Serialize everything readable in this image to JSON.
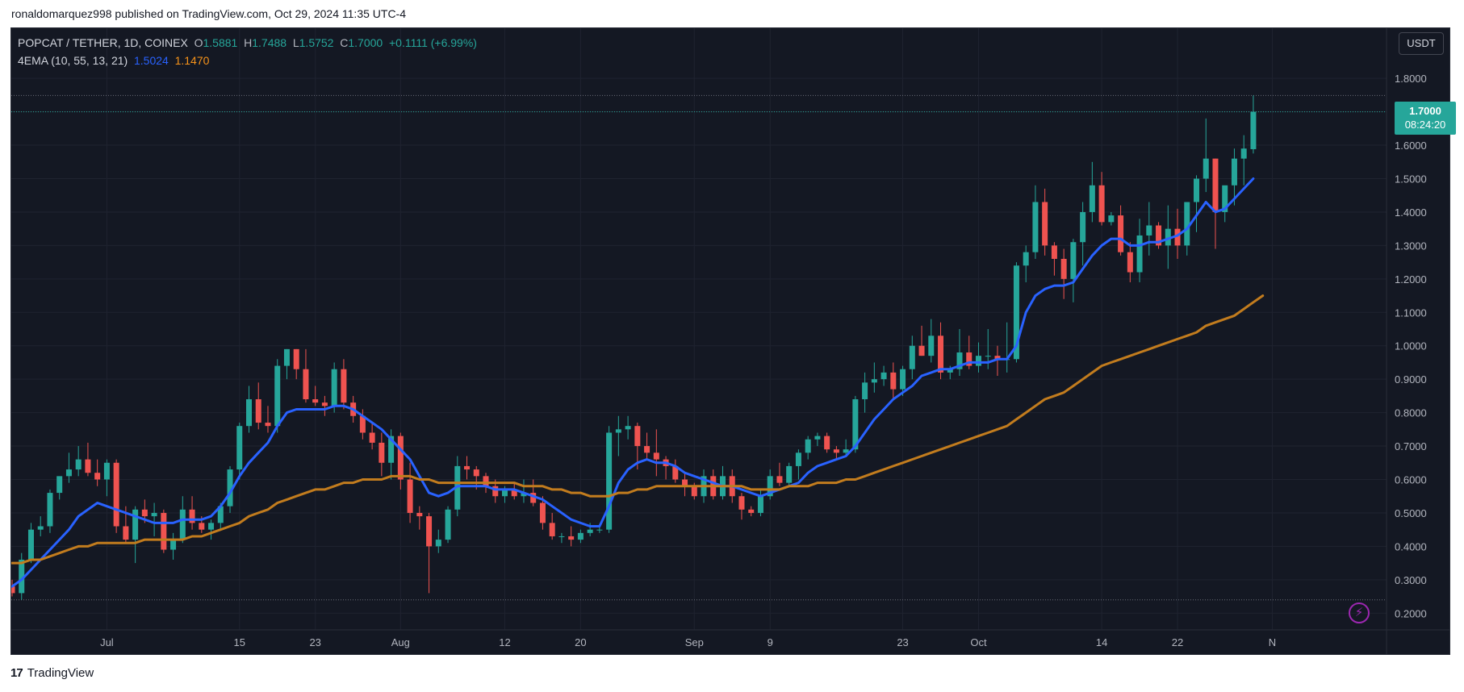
{
  "caption": "ronaldomarquez998 published on TradingView.com, Oct 29, 2024 11:35 UTC-4",
  "footer": {
    "logo_mark": "17",
    "brand": "TradingView"
  },
  "legend": {
    "symbol": "POPCAT / TETHER, 1D, COINEX",
    "o_label": "O",
    "o": "1.5881",
    "h_label": "H",
    "h": "1.7488",
    "l_label": "L",
    "l": "1.5752",
    "c_label": "C",
    "c": "1.7000",
    "change": "+0.1111 (+6.99%)",
    "indicator": "4EMA (10, 55, 13, 21)",
    "ema_fast": "1.5024",
    "ema_slow": "1.1470"
  },
  "currency": "USDT",
  "last_price": "1.7000",
  "countdown": "08:24:20",
  "icons": {
    "alert": "lightning-bolt-icon"
  },
  "colors": {
    "background": "#141823",
    "up": "#26a69a",
    "down": "#ef5350",
    "ema_fast": "#2962ff",
    "ema_slow": "#c27c1e",
    "grid": "#1f2330",
    "axis_text": "#b2b5be"
  },
  "chart_data": {
    "type": "candlestick",
    "title": "POPCAT / TETHER, 1D, COINEX",
    "xlabel": "",
    "ylabel": "",
    "ylim": [
      0.15,
      1.95
    ],
    "y_ticks": [
      0.2,
      0.3,
      0.4,
      0.5,
      0.6,
      0.7,
      0.8,
      0.9,
      1.0,
      1.1,
      1.2,
      1.3,
      1.4,
      1.5,
      1.6,
      1.7,
      1.8
    ],
    "y_tick_labels": [
      "0.2000",
      "0.3000",
      "0.4000",
      "0.5000",
      "0.6000",
      "0.7000",
      "0.8000",
      "0.9000",
      "1.0000",
      "1.1000",
      "1.2000",
      "1.3000",
      "1.4000",
      "1.5000",
      "1.6000",
      "1.7000",
      "1.8000"
    ],
    "x_start": "2024-06-21",
    "x_ticks": [
      {
        "date": "2024-07-01",
        "label": "Jul"
      },
      {
        "date": "2024-07-15",
        "label": "15"
      },
      {
        "date": "2024-07-23",
        "label": "23"
      },
      {
        "date": "2024-08-01",
        "label": "Aug"
      },
      {
        "date": "2024-08-12",
        "label": "12"
      },
      {
        "date": "2024-08-20",
        "label": "20"
      },
      {
        "date": "2024-09-01",
        "label": "Sep"
      },
      {
        "date": "2024-09-09",
        "label": "9"
      },
      {
        "date": "2024-09-23",
        "label": "23"
      },
      {
        "date": "2024-10-01",
        "label": "Oct"
      },
      {
        "date": "2024-10-14",
        "label": "14"
      },
      {
        "date": "2024-10-22",
        "label": "22"
      },
      {
        "date": "2024-11-01",
        "label": "N"
      }
    ],
    "reference_lines": [
      1.7488,
      0.24
    ],
    "candles": [
      [
        0.28,
        0.3,
        0.25,
        0.26
      ],
      [
        0.26,
        0.38,
        0.24,
        0.36
      ],
      [
        0.36,
        0.47,
        0.35,
        0.45
      ],
      [
        0.45,
        0.49,
        0.43,
        0.46
      ],
      [
        0.46,
        0.57,
        0.44,
        0.56
      ],
      [
        0.56,
        0.6,
        0.54,
        0.61
      ],
      [
        0.61,
        0.68,
        0.59,
        0.63
      ],
      [
        0.63,
        0.7,
        0.61,
        0.66
      ],
      [
        0.66,
        0.71,
        0.61,
        0.62
      ],
      [
        0.62,
        0.66,
        0.58,
        0.6
      ],
      [
        0.6,
        0.66,
        0.55,
        0.65
      ],
      [
        0.65,
        0.66,
        0.44,
        0.46
      ],
      [
        0.46,
        0.52,
        0.41,
        0.42
      ],
      [
        0.42,
        0.52,
        0.35,
        0.51
      ],
      [
        0.51,
        0.54,
        0.47,
        0.49
      ],
      [
        0.49,
        0.53,
        0.43,
        0.5
      ],
      [
        0.5,
        0.51,
        0.38,
        0.39
      ],
      [
        0.39,
        0.44,
        0.36,
        0.42
      ],
      [
        0.42,
        0.55,
        0.41,
        0.51
      ],
      [
        0.51,
        0.55,
        0.45,
        0.47
      ],
      [
        0.47,
        0.49,
        0.44,
        0.45
      ],
      [
        0.45,
        0.48,
        0.42,
        0.47
      ],
      [
        0.47,
        0.53,
        0.45,
        0.52
      ],
      [
        0.52,
        0.64,
        0.5,
        0.63
      ],
      [
        0.63,
        0.77,
        0.6,
        0.76
      ],
      [
        0.76,
        0.88,
        0.74,
        0.84
      ],
      [
        0.84,
        0.89,
        0.75,
        0.77
      ],
      [
        0.77,
        0.82,
        0.74,
        0.76
      ],
      [
        0.76,
        0.96,
        0.74,
        0.94
      ],
      [
        0.94,
        0.99,
        0.9,
        0.99
      ],
      [
        0.99,
        0.99,
        0.9,
        0.93
      ],
      [
        0.93,
        0.99,
        0.83,
        0.84
      ],
      [
        0.84,
        0.88,
        0.82,
        0.83
      ],
      [
        0.83,
        0.85,
        0.79,
        0.82
      ],
      [
        0.82,
        0.95,
        0.8,
        0.93
      ],
      [
        0.93,
        0.96,
        0.81,
        0.83
      ],
      [
        0.83,
        0.85,
        0.77,
        0.79
      ],
      [
        0.79,
        0.81,
        0.72,
        0.74
      ],
      [
        0.74,
        0.77,
        0.69,
        0.71
      ],
      [
        0.71,
        0.74,
        0.61,
        0.65
      ],
      [
        0.65,
        0.75,
        0.6,
        0.73
      ],
      [
        0.73,
        0.74,
        0.57,
        0.6
      ],
      [
        0.6,
        0.65,
        0.47,
        0.5
      ],
      [
        0.5,
        0.52,
        0.45,
        0.49
      ],
      [
        0.49,
        0.5,
        0.26,
        0.4
      ],
      [
        0.4,
        0.45,
        0.38,
        0.42
      ],
      [
        0.42,
        0.52,
        0.41,
        0.51
      ],
      [
        0.51,
        0.67,
        0.49,
        0.64
      ],
      [
        0.64,
        0.67,
        0.6,
        0.63
      ],
      [
        0.63,
        0.64,
        0.57,
        0.61
      ],
      [
        0.61,
        0.62,
        0.56,
        0.58
      ],
      [
        0.58,
        0.6,
        0.53,
        0.55
      ],
      [
        0.55,
        0.58,
        0.53,
        0.57
      ],
      [
        0.57,
        0.59,
        0.54,
        0.55
      ],
      [
        0.55,
        0.6,
        0.53,
        0.56
      ],
      [
        0.56,
        0.6,
        0.52,
        0.53
      ],
      [
        0.53,
        0.55,
        0.45,
        0.47
      ],
      [
        0.47,
        0.5,
        0.42,
        0.43
      ],
      [
        0.43,
        0.44,
        0.41,
        0.43
      ],
      [
        0.43,
        0.46,
        0.4,
        0.42
      ],
      [
        0.42,
        0.45,
        0.41,
        0.44
      ],
      [
        0.44,
        0.47,
        0.43,
        0.45
      ],
      [
        0.45,
        0.46,
        0.44,
        0.45
      ],
      [
        0.45,
        0.76,
        0.44,
        0.74
      ],
      [
        0.74,
        0.79,
        0.67,
        0.75
      ],
      [
        0.75,
        0.79,
        0.72,
        0.76
      ],
      [
        0.76,
        0.77,
        0.63,
        0.7
      ],
      [
        0.7,
        0.74,
        0.66,
        0.68
      ],
      [
        0.68,
        0.75,
        0.61,
        0.66
      ],
      [
        0.66,
        0.67,
        0.6,
        0.64
      ],
      [
        0.64,
        0.66,
        0.59,
        0.6
      ],
      [
        0.6,
        0.62,
        0.55,
        0.58
      ],
      [
        0.58,
        0.59,
        0.54,
        0.55
      ],
      [
        0.55,
        0.63,
        0.53,
        0.61
      ],
      [
        0.61,
        0.63,
        0.54,
        0.55
      ],
      [
        0.55,
        0.64,
        0.54,
        0.61
      ],
      [
        0.61,
        0.63,
        0.53,
        0.55
      ],
      [
        0.55,
        0.56,
        0.48,
        0.51
      ],
      [
        0.51,
        0.52,
        0.49,
        0.5
      ],
      [
        0.5,
        0.57,
        0.49,
        0.55
      ],
      [
        0.55,
        0.63,
        0.54,
        0.61
      ],
      [
        0.61,
        0.65,
        0.58,
        0.59
      ],
      [
        0.59,
        0.65,
        0.58,
        0.64
      ],
      [
        0.64,
        0.69,
        0.6,
        0.68
      ],
      [
        0.68,
        0.73,
        0.66,
        0.72
      ],
      [
        0.72,
        0.74,
        0.7,
        0.73
      ],
      [
        0.73,
        0.74,
        0.68,
        0.69
      ],
      [
        0.69,
        0.7,
        0.66,
        0.68
      ],
      [
        0.68,
        0.72,
        0.67,
        0.69
      ],
      [
        0.69,
        0.85,
        0.68,
        0.84
      ],
      [
        0.84,
        0.92,
        0.8,
        0.89
      ],
      [
        0.89,
        0.95,
        0.86,
        0.9
      ],
      [
        0.9,
        0.94,
        0.88,
        0.92
      ],
      [
        0.92,
        0.95,
        0.84,
        0.87
      ],
      [
        0.87,
        0.94,
        0.85,
        0.93
      ],
      [
        0.93,
        1.03,
        0.9,
        1.0
      ],
      [
        1.0,
        1.06,
        0.97,
        0.97
      ],
      [
        0.97,
        1.08,
        0.95,
        1.03
      ],
      [
        1.03,
        1.07,
        0.9,
        0.92
      ],
      [
        0.92,
        0.94,
        0.9,
        0.93
      ],
      [
        0.93,
        1.05,
        0.91,
        0.98
      ],
      [
        0.98,
        1.03,
        0.93,
        0.94
      ],
      [
        0.94,
        1.01,
        0.92,
        0.97
      ],
      [
        0.97,
        1.05,
        0.93,
        0.97
      ],
      [
        0.97,
        1.0,
        0.91,
        0.96
      ],
      [
        0.96,
        1.07,
        0.92,
        0.96
      ],
      [
        0.96,
        1.25,
        0.95,
        1.24
      ],
      [
        1.24,
        1.3,
        1.19,
        1.28
      ],
      [
        1.28,
        1.48,
        1.26,
        1.43
      ],
      [
        1.43,
        1.47,
        1.27,
        1.3
      ],
      [
        1.3,
        1.31,
        1.21,
        1.26
      ],
      [
        1.26,
        1.29,
        1.14,
        1.2
      ],
      [
        1.2,
        1.32,
        1.13,
        1.31
      ],
      [
        1.31,
        1.43,
        1.24,
        1.4
      ],
      [
        1.4,
        1.55,
        1.37,
        1.48
      ],
      [
        1.48,
        1.52,
        1.36,
        1.37
      ],
      [
        1.37,
        1.4,
        1.36,
        1.39
      ],
      [
        1.39,
        1.42,
        1.27,
        1.28
      ],
      [
        1.28,
        1.31,
        1.19,
        1.22
      ],
      [
        1.22,
        1.38,
        1.19,
        1.33
      ],
      [
        1.33,
        1.43,
        1.27,
        1.36
      ],
      [
        1.36,
        1.37,
        1.29,
        1.3
      ],
      [
        1.3,
        1.42,
        1.23,
        1.35
      ],
      [
        1.35,
        1.41,
        1.26,
        1.3
      ],
      [
        1.3,
        1.43,
        1.27,
        1.43
      ],
      [
        1.43,
        1.51,
        1.34,
        1.5
      ],
      [
        1.5,
        1.68,
        1.46,
        1.56
      ],
      [
        1.56,
        1.56,
        1.29,
        1.4
      ],
      [
        1.4,
        1.47,
        1.37,
        1.48
      ],
      [
        1.48,
        1.59,
        1.42,
        1.56
      ],
      [
        1.56,
        1.63,
        1.48,
        1.59
      ],
      [
        1.5881,
        1.7488,
        1.5752,
        1.7
      ]
    ],
    "series": [
      {
        "name": "EMA 10",
        "color": "#2962ff",
        "values": [
          0.28,
          0.3,
          0.33,
          0.36,
          0.39,
          0.42,
          0.45,
          0.49,
          0.51,
          0.53,
          0.52,
          0.51,
          0.5,
          0.49,
          0.48,
          0.47,
          0.47,
          0.47,
          0.48,
          0.48,
          0.48,
          0.49,
          0.52,
          0.56,
          0.61,
          0.65,
          0.68,
          0.71,
          0.76,
          0.8,
          0.81,
          0.81,
          0.81,
          0.81,
          0.82,
          0.82,
          0.81,
          0.79,
          0.77,
          0.75,
          0.72,
          0.69,
          0.66,
          0.61,
          0.56,
          0.55,
          0.56,
          0.58,
          0.58,
          0.58,
          0.58,
          0.57,
          0.57,
          0.57,
          0.56,
          0.55,
          0.54,
          0.52,
          0.5,
          0.48,
          0.47,
          0.46,
          0.46,
          0.52,
          0.59,
          0.63,
          0.65,
          0.66,
          0.65,
          0.65,
          0.64,
          0.62,
          0.61,
          0.6,
          0.59,
          0.58,
          0.58,
          0.57,
          0.56,
          0.55,
          0.56,
          0.57,
          0.58,
          0.59,
          0.62,
          0.64,
          0.65,
          0.66,
          0.67,
          0.7,
          0.74,
          0.78,
          0.81,
          0.84,
          0.86,
          0.88,
          0.91,
          0.92,
          0.93,
          0.93,
          0.94,
          0.95,
          0.95,
          0.95,
          0.96,
          0.96,
          1.0,
          1.1,
          1.15,
          1.17,
          1.18,
          1.18,
          1.19,
          1.23,
          1.27,
          1.3,
          1.32,
          1.32,
          1.3,
          1.3,
          1.31,
          1.31,
          1.32,
          1.33,
          1.35,
          1.39,
          1.43,
          1.4,
          1.41,
          1.44,
          1.47,
          1.5
        ]
      },
      {
        "name": "EMA 55",
        "color": "#c27c1e",
        "values": [
          0.35,
          0.35,
          0.36,
          0.36,
          0.37,
          0.38,
          0.39,
          0.4,
          0.4,
          0.41,
          0.41,
          0.41,
          0.41,
          0.41,
          0.42,
          0.42,
          0.42,
          0.42,
          0.42,
          0.43,
          0.43,
          0.44,
          0.45,
          0.46,
          0.47,
          0.49,
          0.5,
          0.51,
          0.53,
          0.54,
          0.55,
          0.56,
          0.57,
          0.57,
          0.58,
          0.59,
          0.59,
          0.6,
          0.6,
          0.6,
          0.61,
          0.61,
          0.61,
          0.6,
          0.6,
          0.59,
          0.59,
          0.59,
          0.59,
          0.59,
          0.59,
          0.59,
          0.59,
          0.59,
          0.58,
          0.58,
          0.58,
          0.57,
          0.57,
          0.56,
          0.56,
          0.55,
          0.55,
          0.55,
          0.56,
          0.56,
          0.57,
          0.57,
          0.58,
          0.58,
          0.58,
          0.58,
          0.58,
          0.58,
          0.58,
          0.58,
          0.58,
          0.58,
          0.57,
          0.57,
          0.57,
          0.57,
          0.58,
          0.58,
          0.58,
          0.59,
          0.59,
          0.59,
          0.6,
          0.6,
          0.61,
          0.62,
          0.63,
          0.64,
          0.65,
          0.66,
          0.67,
          0.68,
          0.69,
          0.7,
          0.71,
          0.72,
          0.73,
          0.74,
          0.75,
          0.76,
          0.78,
          0.8,
          0.82,
          0.84,
          0.85,
          0.86,
          0.88,
          0.9,
          0.92,
          0.94,
          0.95,
          0.96,
          0.97,
          0.98,
          0.99,
          1.0,
          1.01,
          1.02,
          1.03,
          1.04,
          1.06,
          1.07,
          1.08,
          1.09,
          1.11,
          1.13,
          1.15
        ]
      }
    ]
  }
}
